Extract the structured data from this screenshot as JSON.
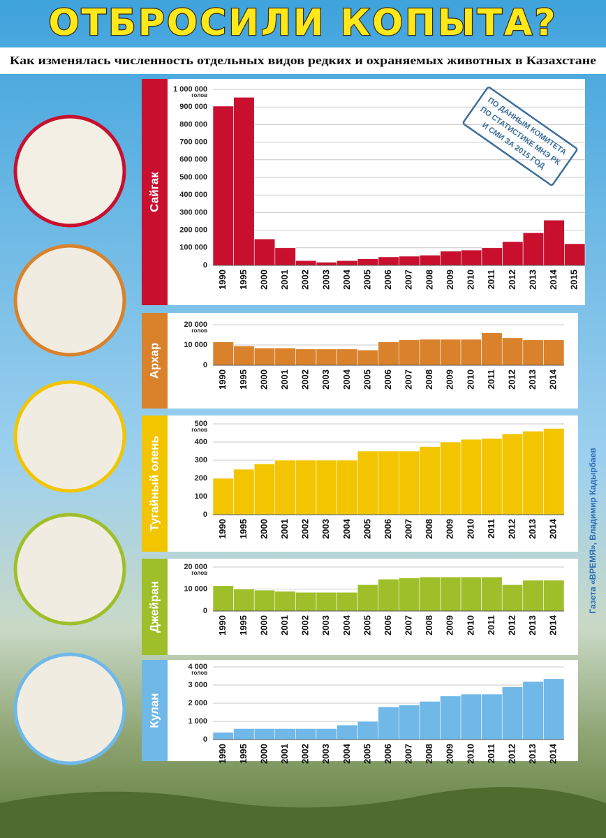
{
  "title": "ОТБРОСИЛИ КОПЫТА?",
  "subtitle": "Как изменялась численность отдельных видов редких и охраняемых животных в Казахстане",
  "stamp": [
    "ПО ДАННЫМ КОМИТЕТА",
    "ПО СТАТИСТИКЕ МНЭ РК",
    "И СМИ ЗА 2015 ГОД"
  ],
  "credit": "Газета «ВРЕМЯ», Владимир Кадырбаев",
  "chart_data": [
    {
      "type": "bar",
      "title": "Сайгак",
      "unit": "голов",
      "color": "#c8102e",
      "categories": [
        "1990",
        "1995",
        "2000",
        "2001",
        "2002",
        "2003",
        "2004",
        "2005",
        "2006",
        "2007",
        "2008",
        "2009",
        "2010",
        "2011",
        "2012",
        "2013",
        "2014",
        "2015"
      ],
      "values": [
        905000,
        955000,
        150000,
        100000,
        27000,
        18000,
        27000,
        37000,
        48000,
        52000,
        58000,
        81000,
        87000,
        100000,
        135000,
        185000,
        257000,
        123000
      ],
      "ylim": [
        0,
        1000000
      ],
      "yticks": [
        0,
        {
          "value": 100000,
          "label": "100 000"
        },
        {
          "value": 200000,
          "label": "200 000"
        },
        {
          "value": 300000,
          "label": "300 000"
        },
        {
          "value": 400000,
          "label": "400 000"
        },
        {
          "value": 500000,
          "label": "500 000"
        },
        {
          "value": 600000,
          "label": "600 000"
        },
        {
          "value": 700000,
          "label": "700 000"
        },
        {
          "value": 800000,
          "label": "800 000"
        },
        {
          "value": 900000,
          "label": "900 000"
        },
        {
          "value": 1000000,
          "label": "1 000 000"
        }
      ],
      "grid": true
    },
    {
      "type": "bar",
      "title": "Архар",
      "unit": "голов",
      "color": "#d9822b",
      "categories": [
        "1990",
        "1995",
        "2000",
        "2001",
        "2002",
        "2003",
        "2004",
        "2005",
        "2006",
        "2007",
        "2008",
        "2009",
        "2010",
        "2011",
        "2012",
        "2013",
        "2014"
      ],
      "values": [
        11500,
        9500,
        8500,
        8500,
        8000,
        8000,
        8000,
        7500,
        11500,
        12500,
        12800,
        12800,
        12800,
        16000,
        13500,
        12500,
        12500
      ],
      "ylim": [
        0,
        20000
      ],
      "yticks": [
        0,
        {
          "value": 10000,
          "label": "10 000"
        },
        {
          "value": 20000,
          "label": "20 000"
        }
      ],
      "grid": true
    },
    {
      "type": "bar",
      "title": "Тугайный олень",
      "unit": "голов",
      "color": "#f2c500",
      "categories": [
        "1990",
        "1995",
        "2000",
        "2001",
        "2002",
        "2003",
        "2004",
        "2005",
        "2006",
        "2007",
        "2008",
        "2009",
        "2010",
        "2011",
        "2012",
        "2013",
        "2014"
      ],
      "values": [
        200,
        250,
        280,
        300,
        300,
        300,
        300,
        350,
        350,
        350,
        375,
        400,
        415,
        420,
        445,
        460,
        475
      ],
      "ylim": [
        0,
        500
      ],
      "yticks": [
        0,
        100,
        200,
        300,
        400,
        500
      ],
      "grid": true
    },
    {
      "type": "bar",
      "title": "Джейран",
      "unit": "голов",
      "color": "#9fbf2a",
      "categories": [
        "1990",
        "1995",
        "2000",
        "2001",
        "2002",
        "2003",
        "2004",
        "2005",
        "2006",
        "2007",
        "2008",
        "2009",
        "2010",
        "2011",
        "2012",
        "2013",
        "2014"
      ],
      "values": [
        11500,
        10000,
        9500,
        9000,
        8500,
        8500,
        8500,
        12000,
        14500,
        15000,
        15500,
        15500,
        15500,
        15500,
        12000,
        14000,
        14000
      ],
      "ylim": [
        0,
        20000
      ],
      "yticks": [
        0,
        {
          "value": 10000,
          "label": "10 000"
        },
        {
          "value": 20000,
          "label": "20 000"
        }
      ],
      "grid": true
    },
    {
      "type": "bar",
      "title": "Кулан",
      "unit": "голов",
      "color": "#6fb8e8",
      "categories": [
        "1990",
        "1995",
        "2000",
        "2001",
        "2002",
        "2003",
        "2004",
        "2005",
        "2006",
        "2007",
        "2008",
        "2009",
        "2010",
        "2011",
        "2012",
        "2013",
        "2014"
      ],
      "values": [
        400,
        600,
        600,
        600,
        600,
        600,
        800,
        1000,
        1800,
        1900,
        2100,
        2400,
        2500,
        2500,
        2900,
        3200,
        3350
      ],
      "ylim": [
        0,
        4000
      ],
      "yticks": [
        0,
        {
          "value": 1000,
          "label": "1 000"
        },
        {
          "value": 2000,
          "label": "2 000"
        },
        {
          "value": 3000,
          "label": "3 000"
        },
        {
          "value": 4000,
          "label": "4 000"
        }
      ],
      "grid": true
    }
  ]
}
